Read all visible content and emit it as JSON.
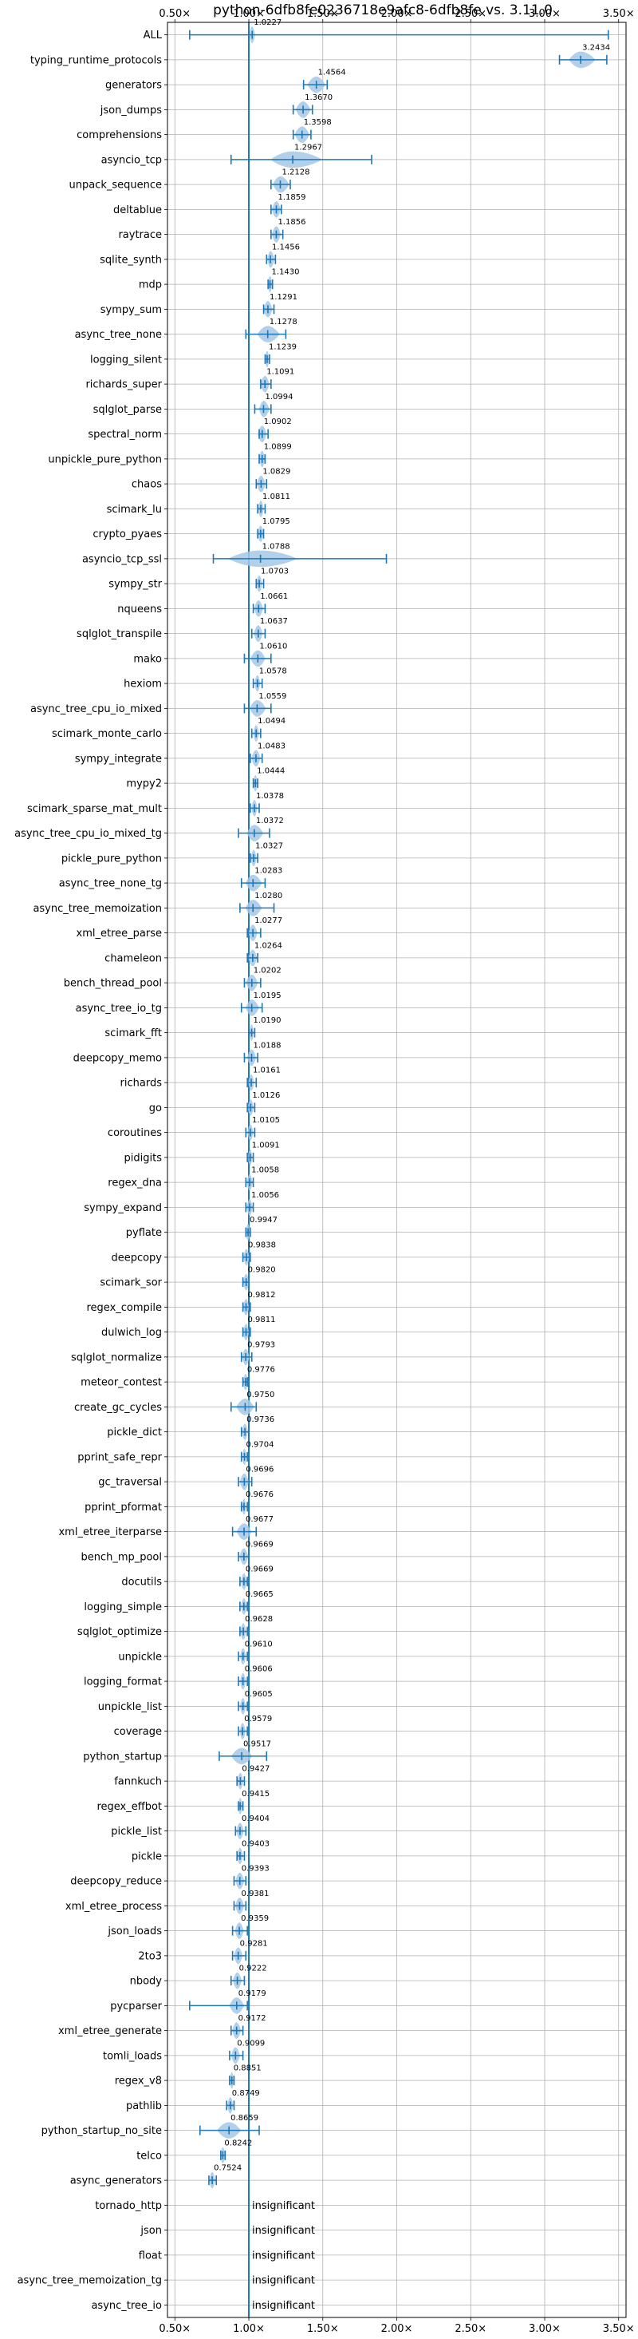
{
  "chart_data": {
    "type": "violin",
    "title": "python-6dfb8fe0236718e9afc8-6dfb8fe vs. 3.11.0",
    "xlim": [
      0.45,
      3.55
    ],
    "x_ticks": [
      0.5,
      1.0,
      1.5,
      2.0,
      2.5,
      3.0,
      3.5
    ],
    "x_tick_labels": [
      "0.50×",
      "1.00×",
      "1.50×",
      "2.00×",
      "2.50×",
      "3.00×",
      "3.50×"
    ],
    "x_ticks_top_and_bottom": true,
    "reference_line": 1.0,
    "grid": true,
    "color": "#1f77b4",
    "violin_fill": "#a6c8e6",
    "items": [
      {
        "name": "ALL",
        "label": "1.0227",
        "value": 1.0227,
        "min": 0.6,
        "max": 3.43,
        "wL": 0.02,
        "wR": 0.02
      },
      {
        "name": "typing_runtime_protocols",
        "label": "3.2434",
        "value": 3.2434,
        "min": 3.1,
        "max": 3.42,
        "wL": 0.08,
        "wR": 0.1
      },
      {
        "name": "generators",
        "label": "1.4564",
        "value": 1.4564,
        "min": 1.37,
        "max": 1.53,
        "wL": 0.06,
        "wR": 0.06
      },
      {
        "name": "json_dumps",
        "label": "1.3670",
        "value": 1.367,
        "min": 1.3,
        "max": 1.43,
        "wL": 0.05,
        "wR": 0.05
      },
      {
        "name": "comprehensions",
        "label": "1.3598",
        "value": 1.3598,
        "min": 1.3,
        "max": 1.42,
        "wL": 0.05,
        "wR": 0.05
      },
      {
        "name": "asyncio_tcp",
        "label": "1.2967",
        "value": 1.2967,
        "min": 0.88,
        "max": 1.83,
        "wL": 0.15,
        "wR": 0.2
      },
      {
        "name": "unpack_sequence",
        "label": "1.2128",
        "value": 1.2128,
        "min": 1.15,
        "max": 1.28,
        "wL": 0.05,
        "wR": 0.06
      },
      {
        "name": "deltablue",
        "label": "1.1859",
        "value": 1.1859,
        "min": 1.15,
        "max": 1.22,
        "wL": 0.03,
        "wR": 0.03
      },
      {
        "name": "raytrace",
        "label": "1.1856",
        "value": 1.1856,
        "min": 1.15,
        "max": 1.23,
        "wL": 0.03,
        "wR": 0.03
      },
      {
        "name": "sqlite_synth",
        "label": "1.1456",
        "value": 1.1456,
        "min": 1.12,
        "max": 1.18,
        "wL": 0.02,
        "wR": 0.03
      },
      {
        "name": "mdp",
        "label": "1.1430",
        "value": 1.143,
        "min": 1.13,
        "max": 1.16,
        "wL": 0.015,
        "wR": 0.015
      },
      {
        "name": "sympy_sum",
        "label": "1.1291",
        "value": 1.1291,
        "min": 1.1,
        "max": 1.17,
        "wL": 0.03,
        "wR": 0.03
      },
      {
        "name": "async_tree_none",
        "label": "1.1278",
        "value": 1.1278,
        "min": 0.98,
        "max": 1.25,
        "wL": 0.07,
        "wR": 0.08
      },
      {
        "name": "logging_silent",
        "label": "1.1239",
        "value": 1.1239,
        "min": 1.11,
        "max": 1.14,
        "wL": 0.015,
        "wR": 0.015
      },
      {
        "name": "richards_super",
        "label": "1.1091",
        "value": 1.1091,
        "min": 1.08,
        "max": 1.15,
        "wL": 0.03,
        "wR": 0.03
      },
      {
        "name": "sqlglot_parse",
        "label": "1.0994",
        "value": 1.0994,
        "min": 1.04,
        "max": 1.15,
        "wL": 0.03,
        "wR": 0.04
      },
      {
        "name": "spectral_norm",
        "label": "1.0902",
        "value": 1.0902,
        "min": 1.07,
        "max": 1.13,
        "wL": 0.03,
        "wR": 0.03
      },
      {
        "name": "unpickle_pure_python",
        "label": "1.0899",
        "value": 1.0899,
        "min": 1.07,
        "max": 1.11,
        "wL": 0.02,
        "wR": 0.02
      },
      {
        "name": "chaos",
        "label": "1.0829",
        "value": 1.0829,
        "min": 1.05,
        "max": 1.12,
        "wL": 0.03,
        "wR": 0.03
      },
      {
        "name": "scimark_lu",
        "label": "1.0811",
        "value": 1.0811,
        "min": 1.06,
        "max": 1.11,
        "wL": 0.02,
        "wR": 0.02
      },
      {
        "name": "crypto_pyaes",
        "label": "1.0795",
        "value": 1.0795,
        "min": 1.06,
        "max": 1.1,
        "wL": 0.02,
        "wR": 0.02
      },
      {
        "name": "asyncio_tcp_ssl",
        "label": "1.0788",
        "value": 1.0788,
        "min": 0.76,
        "max": 1.93,
        "wL": 0.22,
        "wR": 0.25
      },
      {
        "name": "sympy_str",
        "label": "1.0703",
        "value": 1.0703,
        "min": 1.05,
        "max": 1.1,
        "wL": 0.02,
        "wR": 0.02
      },
      {
        "name": "nqueens",
        "label": "1.0661",
        "value": 1.0661,
        "min": 1.03,
        "max": 1.11,
        "wL": 0.03,
        "wR": 0.03
      },
      {
        "name": "sqlglot_transpile",
        "label": "1.0637",
        "value": 1.0637,
        "min": 1.02,
        "max": 1.11,
        "wL": 0.03,
        "wR": 0.03
      },
      {
        "name": "mako",
        "label": "1.0610",
        "value": 1.061,
        "min": 0.97,
        "max": 1.15,
        "wL": 0.05,
        "wR": 0.05
      },
      {
        "name": "hexiom",
        "label": "1.0578",
        "value": 1.0578,
        "min": 1.03,
        "max": 1.09,
        "wL": 0.02,
        "wR": 0.02
      },
      {
        "name": "async_tree_cpu_io_mixed",
        "label": "1.0559",
        "value": 1.0559,
        "min": 0.97,
        "max": 1.15,
        "wL": 0.05,
        "wR": 0.06
      },
      {
        "name": "scimark_monte_carlo",
        "label": "1.0494",
        "value": 1.0494,
        "min": 1.02,
        "max": 1.08,
        "wL": 0.02,
        "wR": 0.02
      },
      {
        "name": "sympy_integrate",
        "label": "1.0483",
        "value": 1.0483,
        "min": 1.01,
        "max": 1.09,
        "wL": 0.03,
        "wR": 0.03
      },
      {
        "name": "mypy2",
        "label": "1.0444",
        "value": 1.0444,
        "min": 1.03,
        "max": 1.06,
        "wL": 0.015,
        "wR": 0.015
      },
      {
        "name": "scimark_sparse_mat_mult",
        "label": "1.0378",
        "value": 1.0378,
        "min": 1.01,
        "max": 1.07,
        "wL": 0.02,
        "wR": 0.02
      },
      {
        "name": "async_tree_cpu_io_mixed_tg",
        "label": "1.0372",
        "value": 1.0372,
        "min": 0.93,
        "max": 1.14,
        "wL": 0.05,
        "wR": 0.06
      },
      {
        "name": "pickle_pure_python",
        "label": "1.0327",
        "value": 1.0327,
        "min": 1.01,
        "max": 1.06,
        "wL": 0.02,
        "wR": 0.02
      },
      {
        "name": "async_tree_none_tg",
        "label": "1.0283",
        "value": 1.0283,
        "min": 0.95,
        "max": 1.11,
        "wL": 0.05,
        "wR": 0.06
      },
      {
        "name": "async_tree_memoization",
        "label": "1.0280",
        "value": 1.028,
        "min": 0.94,
        "max": 1.17,
        "wL": 0.05,
        "wR": 0.06
      },
      {
        "name": "xml_etree_parse",
        "label": "1.0277",
        "value": 1.0277,
        "min": 0.99,
        "max": 1.08,
        "wL": 0.03,
        "wR": 0.03
      },
      {
        "name": "chameleon",
        "label": "1.0264",
        "value": 1.0264,
        "min": 0.99,
        "max": 1.06,
        "wL": 0.03,
        "wR": 0.03
      },
      {
        "name": "bench_thread_pool",
        "label": "1.0202",
        "value": 1.0202,
        "min": 0.97,
        "max": 1.08,
        "wL": 0.04,
        "wR": 0.04
      },
      {
        "name": "async_tree_io_tg",
        "label": "1.0195",
        "value": 1.0195,
        "min": 0.95,
        "max": 1.09,
        "wL": 0.04,
        "wR": 0.05
      },
      {
        "name": "scimark_fft",
        "label": "1.0190",
        "value": 1.019,
        "min": 1.0,
        "max": 1.04,
        "wL": 0.015,
        "wR": 0.015
      },
      {
        "name": "deepcopy_memo",
        "label": "1.0188",
        "value": 1.0188,
        "min": 0.97,
        "max": 1.06,
        "wL": 0.03,
        "wR": 0.03
      },
      {
        "name": "richards",
        "label": "1.0161",
        "value": 1.0161,
        "min": 0.99,
        "max": 1.05,
        "wL": 0.02,
        "wR": 0.02
      },
      {
        "name": "go",
        "label": "1.0126",
        "value": 1.0126,
        "min": 0.99,
        "max": 1.04,
        "wL": 0.02,
        "wR": 0.02
      },
      {
        "name": "coroutines",
        "label": "1.0105",
        "value": 1.0105,
        "min": 0.98,
        "max": 1.04,
        "wL": 0.02,
        "wR": 0.02
      },
      {
        "name": "pidigits",
        "label": "1.0091",
        "value": 1.0091,
        "min": 0.99,
        "max": 1.03,
        "wL": 0.015,
        "wR": 0.015
      },
      {
        "name": "regex_dna",
        "label": "1.0058",
        "value": 1.0058,
        "min": 0.98,
        "max": 1.03,
        "wL": 0.02,
        "wR": 0.02
      },
      {
        "name": "sympy_expand",
        "label": "1.0056",
        "value": 1.0056,
        "min": 0.98,
        "max": 1.03,
        "wL": 0.02,
        "wR": 0.02
      },
      {
        "name": "pyflate",
        "label": "0.9947",
        "value": 0.9947,
        "min": 0.98,
        "max": 1.01,
        "wL": 0.015,
        "wR": 0.015
      },
      {
        "name": "deepcopy",
        "label": "0.9838",
        "value": 0.9838,
        "min": 0.96,
        "max": 1.01,
        "wL": 0.02,
        "wR": 0.02
      },
      {
        "name": "scimark_sor",
        "label": "0.9820",
        "value": 0.982,
        "min": 0.96,
        "max": 1.0,
        "wL": 0.02,
        "wR": 0.02
      },
      {
        "name": "regex_compile",
        "label": "0.9812",
        "value": 0.9812,
        "min": 0.96,
        "max": 1.01,
        "wL": 0.02,
        "wR": 0.02
      },
      {
        "name": "dulwich_log",
        "label": "0.9811",
        "value": 0.9811,
        "min": 0.96,
        "max": 1.01,
        "wL": 0.02,
        "wR": 0.02
      },
      {
        "name": "sqlglot_normalize",
        "label": "0.9793",
        "value": 0.9793,
        "min": 0.95,
        "max": 1.02,
        "wL": 0.025,
        "wR": 0.025
      },
      {
        "name": "meteor_contest",
        "label": "0.9776",
        "value": 0.9776,
        "min": 0.96,
        "max": 0.99,
        "wL": 0.015,
        "wR": 0.015
      },
      {
        "name": "create_gc_cycles",
        "label": "0.9750",
        "value": 0.975,
        "min": 0.88,
        "max": 1.05,
        "wL": 0.06,
        "wR": 0.06
      },
      {
        "name": "pickle_dict",
        "label": "0.9736",
        "value": 0.9736,
        "min": 0.95,
        "max": 1.0,
        "wL": 0.02,
        "wR": 0.02
      },
      {
        "name": "pprint_safe_repr",
        "label": "0.9704",
        "value": 0.9704,
        "min": 0.95,
        "max": 0.99,
        "wL": 0.015,
        "wR": 0.015
      },
      {
        "name": "gc_traversal",
        "label": "0.9696",
        "value": 0.9696,
        "min": 0.93,
        "max": 1.02,
        "wL": 0.03,
        "wR": 0.03
      },
      {
        "name": "pprint_pformat",
        "label": "0.9676",
        "value": 0.9676,
        "min": 0.95,
        "max": 0.99,
        "wL": 0.015,
        "wR": 0.015
      },
      {
        "name": "xml_etree_iterparse",
        "label": "0.9677",
        "value": 0.9677,
        "min": 0.89,
        "max": 1.05,
        "wL": 0.05,
        "wR": 0.05
      },
      {
        "name": "bench_mp_pool",
        "label": "0.9669",
        "value": 0.9669,
        "min": 0.93,
        "max": 1.0,
        "wL": 0.03,
        "wR": 0.03
      },
      {
        "name": "docutils",
        "label": "0.9669",
        "value": 0.9669,
        "min": 0.94,
        "max": 0.99,
        "wL": 0.02,
        "wR": 0.02
      },
      {
        "name": "logging_simple",
        "label": "0.9665",
        "value": 0.9665,
        "min": 0.94,
        "max": 0.99,
        "wL": 0.02,
        "wR": 0.02
      },
      {
        "name": "sqlglot_optimize",
        "label": "0.9628",
        "value": 0.9628,
        "min": 0.94,
        "max": 0.99,
        "wL": 0.02,
        "wR": 0.02
      },
      {
        "name": "unpickle",
        "label": "0.9610",
        "value": 0.961,
        "min": 0.93,
        "max": 0.99,
        "wL": 0.02,
        "wR": 0.02
      },
      {
        "name": "logging_format",
        "label": "0.9606",
        "value": 0.9606,
        "min": 0.93,
        "max": 0.99,
        "wL": 0.02,
        "wR": 0.02
      },
      {
        "name": "unpickle_list",
        "label": "0.9605",
        "value": 0.9605,
        "min": 0.93,
        "max": 0.99,
        "wL": 0.02,
        "wR": 0.02
      },
      {
        "name": "coverage",
        "label": "0.9579",
        "value": 0.9579,
        "min": 0.93,
        "max": 0.99,
        "wL": 0.02,
        "wR": 0.02
      },
      {
        "name": "python_startup",
        "label": "0.9517",
        "value": 0.9517,
        "min": 0.8,
        "max": 1.12,
        "wL": 0.07,
        "wR": 0.07
      },
      {
        "name": "fannkuch",
        "label": "0.9427",
        "value": 0.9427,
        "min": 0.92,
        "max": 0.97,
        "wL": 0.02,
        "wR": 0.02
      },
      {
        "name": "regex_effbot",
        "label": "0.9415",
        "value": 0.9415,
        "min": 0.93,
        "max": 0.96,
        "wL": 0.015,
        "wR": 0.015
      },
      {
        "name": "pickle_list",
        "label": "0.9404",
        "value": 0.9404,
        "min": 0.91,
        "max": 0.98,
        "wL": 0.025,
        "wR": 0.025
      },
      {
        "name": "pickle",
        "label": "0.9403",
        "value": 0.9403,
        "min": 0.92,
        "max": 0.97,
        "wL": 0.02,
        "wR": 0.02
      },
      {
        "name": "deepcopy_reduce",
        "label": "0.9393",
        "value": 0.9393,
        "min": 0.9,
        "max": 0.98,
        "wL": 0.03,
        "wR": 0.03
      },
      {
        "name": "xml_etree_process",
        "label": "0.9381",
        "value": 0.9381,
        "min": 0.9,
        "max": 0.98,
        "wL": 0.03,
        "wR": 0.03
      },
      {
        "name": "json_loads",
        "label": "0.9359",
        "value": 0.9359,
        "min": 0.89,
        "max": 0.99,
        "wL": 0.03,
        "wR": 0.03
      },
      {
        "name": "2to3",
        "label": "0.9281",
        "value": 0.9281,
        "min": 0.89,
        "max": 0.98,
        "wL": 0.03,
        "wR": 0.03
      },
      {
        "name": "nbody",
        "label": "0.9222",
        "value": 0.9222,
        "min": 0.88,
        "max": 0.97,
        "wL": 0.03,
        "wR": 0.03
      },
      {
        "name": "pycparser",
        "label": "0.9179",
        "value": 0.9179,
        "min": 0.6,
        "max": 0.99,
        "wL": 0.05,
        "wR": 0.05
      },
      {
        "name": "xml_etree_generate",
        "label": "0.9172",
        "value": 0.9172,
        "min": 0.88,
        "max": 0.96,
        "wL": 0.03,
        "wR": 0.03
      },
      {
        "name": "tomli_loads",
        "label": "0.9099",
        "value": 0.9099,
        "min": 0.87,
        "max": 0.96,
        "wL": 0.03,
        "wR": 0.03
      },
      {
        "name": "regex_v8",
        "label": "0.8851",
        "value": 0.8851,
        "min": 0.87,
        "max": 0.9,
        "wL": 0.015,
        "wR": 0.015
      },
      {
        "name": "pathlib",
        "label": "0.8749",
        "value": 0.8749,
        "min": 0.85,
        "max": 0.9,
        "wL": 0.02,
        "wR": 0.02
      },
      {
        "name": "python_startup_no_site",
        "label": "0.8659",
        "value": 0.8659,
        "min": 0.67,
        "max": 1.07,
        "wL": 0.08,
        "wR": 0.08
      },
      {
        "name": "telco",
        "label": "0.8242",
        "value": 0.8242,
        "min": 0.81,
        "max": 0.84,
        "wL": 0.015,
        "wR": 0.015
      },
      {
        "name": "async_generators",
        "label": "0.7524",
        "value": 0.7524,
        "min": 0.73,
        "max": 0.78,
        "wL": 0.02,
        "wR": 0.02
      },
      {
        "name": "tornado_http",
        "label": "insignificant",
        "insignificant": true
      },
      {
        "name": "json",
        "label": "insignificant",
        "insignificant": true
      },
      {
        "name": "float",
        "label": "insignificant",
        "insignificant": true
      },
      {
        "name": "async_tree_memoization_tg",
        "label": "insignificant",
        "insignificant": true
      },
      {
        "name": "async_tree_io",
        "label": "insignificant",
        "insignificant": true
      }
    ]
  }
}
